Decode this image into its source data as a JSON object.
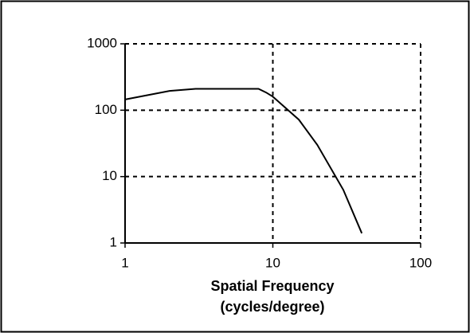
{
  "chart_data": {
    "type": "line",
    "xlabel": [
      "Spatial Frequency",
      "(cycles/degree)"
    ],
    "x": [
      1,
      2,
      3,
      5,
      8,
      9,
      10,
      15,
      20,
      30,
      40
    ],
    "series": [
      {
        "color": "#000000",
        "values": [
          145,
          195,
          210,
          210,
          210,
          185,
          160,
          72,
          30,
          6.3,
          1.4
        ]
      }
    ],
    "xlim": [
      1,
      100
    ],
    "ylim": [
      1,
      1000
    ],
    "xticks": [
      1,
      10,
      100
    ],
    "yticks": [
      1,
      10,
      100,
      1000
    ],
    "xscale": "log",
    "yscale": "log",
    "grid": true
  }
}
